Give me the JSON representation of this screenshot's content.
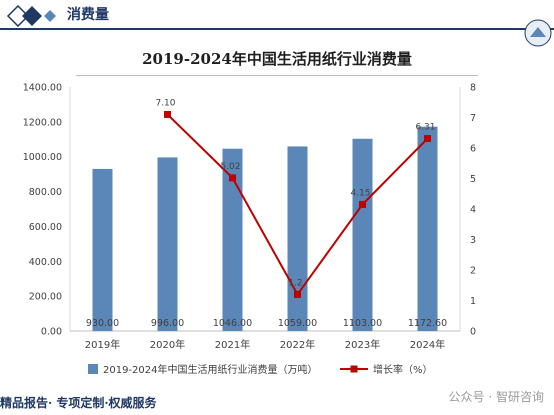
{
  "header": {
    "title": "消费量"
  },
  "footer": {
    "text": "精品报告· 专项定制·权威服务"
  },
  "watermark": {
    "text": "公众号 · 智研咨询"
  },
  "colors": {
    "bar": "#5b86b8",
    "line": "#c00000",
    "header": "#1f3864"
  },
  "chart_data": {
    "type": "bar",
    "title": "2019-2024年中国生活用纸行业消费量",
    "categories": [
      "2019年",
      "2020年",
      "2021年",
      "2022年",
      "2023年",
      "2024年"
    ],
    "left_ticks": [
      "0.00",
      "200.00",
      "400.00",
      "600.00",
      "800.00",
      "1000.00",
      "1200.00",
      "1400.00"
    ],
    "right_ticks": [
      "0",
      "1",
      "2",
      "3",
      "4",
      "5",
      "6",
      "7",
      "8"
    ],
    "ylim_left": [
      0,
      1400
    ],
    "ylim_right": [
      0,
      8
    ],
    "grid": false,
    "legend_position": "bottom",
    "series": [
      {
        "name": "2019-2024年中国生活用纸行业消费量（万吨）",
        "type": "bar",
        "axis": "left",
        "values": [
          930,
          996,
          1046,
          1059,
          1103,
          1172.6
        ],
        "labels": [
          "930.00",
          "996.00",
          "1046.00",
          "1059.00",
          "1103.00",
          "1172.60"
        ]
      },
      {
        "name": "增长率（%）",
        "type": "line",
        "axis": "right",
        "values": [
          null,
          7.1,
          5.02,
          1.2,
          4.15,
          6.31
        ],
        "labels": [
          "",
          "7.10",
          "5.02",
          "1.2",
          "4.15",
          "6.31"
        ]
      }
    ]
  }
}
